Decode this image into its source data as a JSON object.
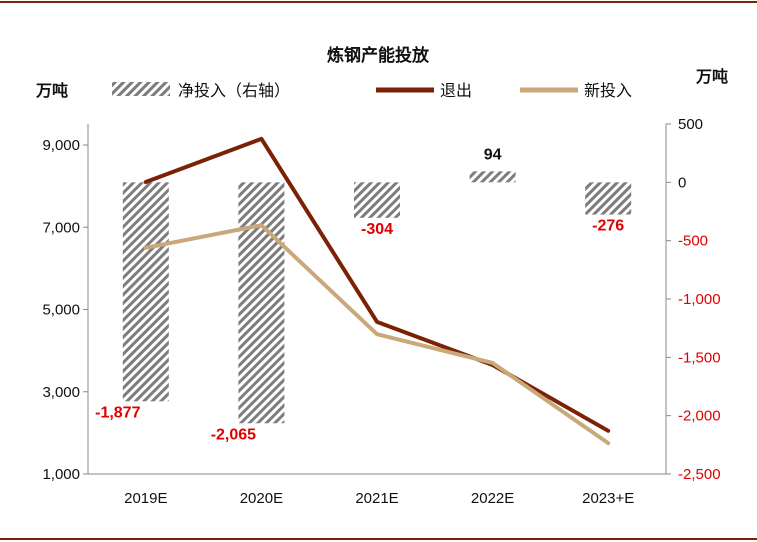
{
  "chart_data": {
    "type": "bar",
    "title": "炼钢产能投放",
    "left_axis_label": "万吨",
    "right_axis_label": "万吨",
    "categories": [
      "2019E",
      "2020E",
      "2021E",
      "2022E",
      "2023+E"
    ],
    "left_ylim": [
      1000,
      9000
    ],
    "left_ticks": [
      "9,000",
      "7,000",
      "5,000",
      "3,000",
      "1,000"
    ],
    "left_tick_values": [
      9000,
      7000,
      5000,
      3000,
      1000
    ],
    "right_ylim": [
      -2500,
      500
    ],
    "right_ticks": [
      "500",
      "0",
      "-500",
      "-1,000",
      "-1,500",
      "-2,000",
      "-2,500"
    ],
    "right_tick_values": [
      500,
      0,
      -500,
      -1000,
      -1500,
      -2000,
      -2500
    ],
    "legend": {
      "net": "净投入（右轴）",
      "exit": "退出",
      "new": "新投入"
    },
    "series": [
      {
        "name": "净投入（右轴）",
        "axis": "right",
        "kind": "bar",
        "values": [
          -1877,
          -2065,
          -304,
          94,
          -276
        ],
        "labels": [
          "-1,877",
          "-2,065",
          "-304",
          "94",
          "-276"
        ]
      },
      {
        "name": "退出",
        "axis": "left",
        "kind": "line",
        "color": "#7b2106",
        "values": [
          8100,
          9150,
          4700,
          3650,
          2050
        ]
      },
      {
        "name": "新投入",
        "axis": "left",
        "kind": "line",
        "color": "#c9a87a",
        "values": [
          6500,
          7050,
          4400,
          3700,
          1750
        ]
      }
    ],
    "colors": {
      "exit": "#7b2106",
      "new": "#c9a87a",
      "negative_label": "#e00000",
      "positive_label": "#111111",
      "frame": "#7b2106"
    },
    "grid": false,
    "legend_position": "top"
  }
}
